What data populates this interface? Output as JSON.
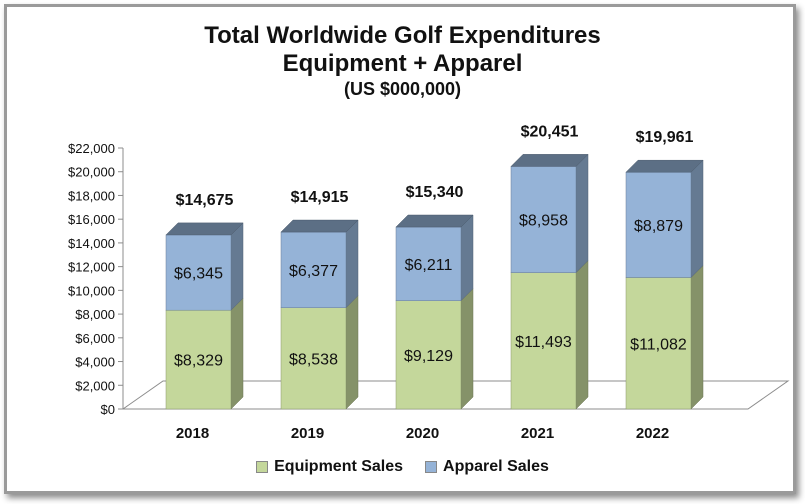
{
  "chart_data": {
    "type": "bar",
    "stacked": true,
    "three_d": true,
    "title": "Total Worldwide Golf Expenditures",
    "subtitle": "Equipment + Apparel",
    "unit_note": "(US $000,000)",
    "categories": [
      "2018",
      "2019",
      "2020",
      "2021",
      "2022"
    ],
    "series": [
      {
        "name": "Equipment Sales",
        "color": "#c4d79b",
        "values": [
          8329,
          8538,
          9129,
          11493,
          11082
        ],
        "labels": [
          "$8,329",
          "$8,538",
          "$9,129",
          "$11,493",
          "$11,082"
        ]
      },
      {
        "name": "Apparel Sales",
        "color": "#95b3d7",
        "values": [
          6345,
          6377,
          6211,
          8958,
          8879
        ],
        "labels": [
          "$6,345",
          "$6,377",
          "$6,211",
          "$8,958",
          "$8,879"
        ]
      }
    ],
    "totals": [
      14675,
      14915,
      15340,
      20451,
      19961
    ],
    "total_labels": [
      "$14,675",
      "$14,915",
      "$15,340",
      "$20,451",
      "$19,961"
    ],
    "ylim": [
      0,
      22000
    ],
    "yticks": [
      0,
      2000,
      4000,
      6000,
      8000,
      10000,
      12000,
      14000,
      16000,
      18000,
      20000,
      22000
    ],
    "ytick_labels": [
      "$0",
      "$2,000",
      "$4,000",
      "$6,000",
      "$8,000",
      "$10,000",
      "$12,000",
      "$14,000",
      "$16,000",
      "$18,000",
      "$20,000",
      "$22,000"
    ],
    "grid": false,
    "legend_position": "bottom"
  }
}
